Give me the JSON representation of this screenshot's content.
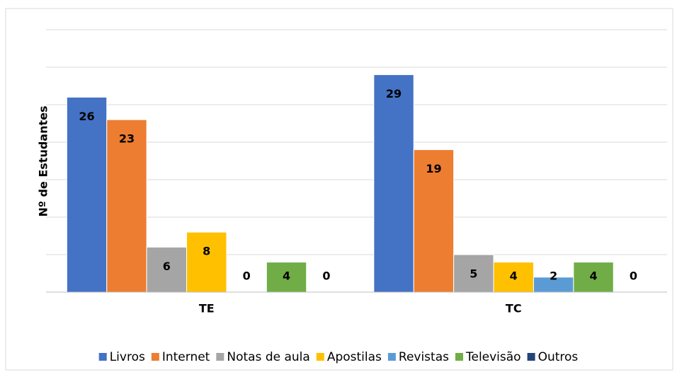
{
  "chart_data": {
    "type": "bar",
    "y_label": "Nº de Estudantes",
    "categories": [
      "TE",
      "TC"
    ],
    "series": [
      {
        "name": "Livros",
        "color": "#4472c4",
        "values": [
          26,
          29
        ]
      },
      {
        "name": "Internet",
        "color": "#ed7d31",
        "values": [
          23,
          19
        ]
      },
      {
        "name": "Notas de aula",
        "color": "#a5a5a5",
        "values": [
          6,
          5
        ]
      },
      {
        "name": "Apostilas",
        "color": "#ffc000",
        "values": [
          8,
          4
        ]
      },
      {
        "name": "Revistas",
        "color": "#5b9bd5",
        "values": [
          0,
          2
        ]
      },
      {
        "name": "Televisão",
        "color": "#70ad47",
        "values": [
          4,
          4
        ]
      },
      {
        "name": "Outros",
        "color": "#264478",
        "values": [
          0,
          0
        ]
      }
    ],
    "ylim": [
      0,
      35
    ],
    "yticks": [
      0,
      5,
      10,
      15,
      20,
      25,
      30,
      35
    ],
    "grid": true,
    "legend": "bottom"
  }
}
